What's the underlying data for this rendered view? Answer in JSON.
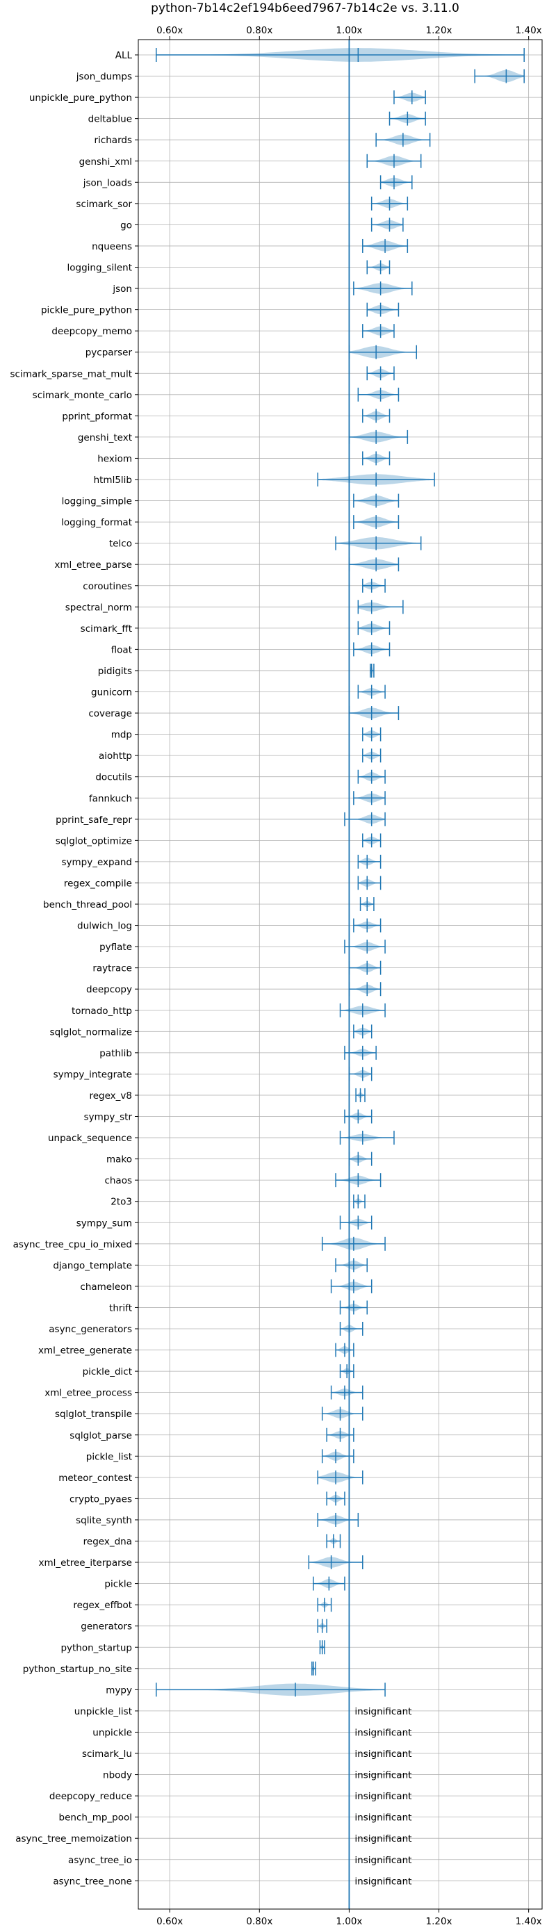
{
  "chart_data": {
    "type": "violin",
    "title": "python-7b14c2ef194b6eed7967-7b14c2e vs. 3.11.0",
    "xlim": [
      0.53,
      1.43
    ],
    "xticks": [
      0.6,
      0.8,
      1.0,
      1.2,
      1.4
    ],
    "xtick_labels": [
      "0.60x",
      "0.80x",
      "1.00x",
      "1.20x",
      "1.40x"
    ],
    "reference_line": 1.0,
    "grid": true,
    "annotation_text": "insignificant",
    "benchmarks": [
      {
        "name": "ALL",
        "min": 0.57,
        "max": 1.39,
        "mean": 1.02,
        "width": 0.9,
        "spread": 0.05
      },
      {
        "name": "json_dumps",
        "min": 1.28,
        "max": 1.39,
        "mean": 1.35,
        "width": 0.8,
        "spread": 0.02
      },
      {
        "name": "unpickle_pure_python",
        "min": 1.1,
        "max": 1.17,
        "mean": 1.14,
        "width": 0.6,
        "spread": 0.015
      },
      {
        "name": "deltablue",
        "min": 1.09,
        "max": 1.17,
        "mean": 1.13,
        "width": 0.6,
        "spread": 0.015
      },
      {
        "name": "richards",
        "min": 1.06,
        "max": 1.18,
        "mean": 1.12,
        "width": 0.7,
        "spread": 0.02
      },
      {
        "name": "genshi_xml",
        "min": 1.04,
        "max": 1.16,
        "mean": 1.1,
        "width": 0.7,
        "spread": 0.02
      },
      {
        "name": "json_loads",
        "min": 1.07,
        "max": 1.14,
        "mean": 1.1,
        "width": 0.6,
        "spread": 0.015
      },
      {
        "name": "scimark_sor",
        "min": 1.05,
        "max": 1.13,
        "mean": 1.09,
        "width": 0.6,
        "spread": 0.015
      },
      {
        "name": "go",
        "min": 1.05,
        "max": 1.12,
        "mean": 1.09,
        "width": 0.6,
        "spread": 0.015
      },
      {
        "name": "nqueens",
        "min": 1.03,
        "max": 1.13,
        "mean": 1.08,
        "width": 0.7,
        "spread": 0.02
      },
      {
        "name": "logging_silent",
        "min": 1.04,
        "max": 1.09,
        "mean": 1.07,
        "width": 0.5,
        "spread": 0.01
      },
      {
        "name": "json",
        "min": 1.01,
        "max": 1.14,
        "mean": 1.07,
        "width": 0.7,
        "spread": 0.025
      },
      {
        "name": "pickle_pure_python",
        "min": 1.04,
        "max": 1.11,
        "mean": 1.07,
        "width": 0.6,
        "spread": 0.015
      },
      {
        "name": "deepcopy_memo",
        "min": 1.03,
        "max": 1.1,
        "mean": 1.07,
        "width": 0.6,
        "spread": 0.015
      },
      {
        "name": "pycparser",
        "min": 1.0,
        "max": 1.15,
        "mean": 1.06,
        "width": 0.8,
        "spread": 0.03
      },
      {
        "name": "scimark_sparse_mat_mult",
        "min": 1.04,
        "max": 1.1,
        "mean": 1.07,
        "width": 0.6,
        "spread": 0.012
      },
      {
        "name": "scimark_monte_carlo",
        "min": 1.02,
        "max": 1.11,
        "mean": 1.07,
        "width": 0.6,
        "spread": 0.015
      },
      {
        "name": "pprint_pformat",
        "min": 1.03,
        "max": 1.09,
        "mean": 1.06,
        "width": 0.6,
        "spread": 0.012
      },
      {
        "name": "genshi_text",
        "min": 1.0,
        "max": 1.13,
        "mean": 1.06,
        "width": 0.7,
        "spread": 0.025
      },
      {
        "name": "hexiom",
        "min": 1.03,
        "max": 1.09,
        "mean": 1.06,
        "width": 0.6,
        "spread": 0.012
      },
      {
        "name": "html5lib",
        "min": 0.93,
        "max": 1.19,
        "mean": 1.06,
        "width": 0.7,
        "spread": 0.06
      },
      {
        "name": "logging_simple",
        "min": 1.01,
        "max": 1.11,
        "mean": 1.06,
        "width": 0.7,
        "spread": 0.02
      },
      {
        "name": "logging_format",
        "min": 1.01,
        "max": 1.11,
        "mean": 1.06,
        "width": 0.7,
        "spread": 0.02
      },
      {
        "name": "telco",
        "min": 0.97,
        "max": 1.16,
        "mean": 1.06,
        "width": 0.8,
        "spread": 0.04
      },
      {
        "name": "xml_etree_parse",
        "min": 1.0,
        "max": 1.11,
        "mean": 1.06,
        "width": 0.7,
        "spread": 0.025
      },
      {
        "name": "coroutines",
        "min": 1.03,
        "max": 1.08,
        "mean": 1.05,
        "width": 0.5,
        "spread": 0.012
      },
      {
        "name": "spectral_norm",
        "min": 1.02,
        "max": 1.12,
        "mean": 1.05,
        "width": 0.6,
        "spread": 0.02
      },
      {
        "name": "scimark_fft",
        "min": 1.02,
        "max": 1.09,
        "mean": 1.05,
        "width": 0.6,
        "spread": 0.015
      },
      {
        "name": "float",
        "min": 1.01,
        "max": 1.09,
        "mean": 1.05,
        "width": 0.6,
        "spread": 0.015
      },
      {
        "name": "pidigits",
        "min": 1.047,
        "max": 1.055,
        "mean": 1.05,
        "width": 0.6,
        "spread": 0.002
      },
      {
        "name": "gunicorn",
        "min": 1.02,
        "max": 1.08,
        "mean": 1.05,
        "width": 0.5,
        "spread": 0.012
      },
      {
        "name": "coverage",
        "min": 1.0,
        "max": 1.11,
        "mean": 1.05,
        "width": 0.7,
        "spread": 0.02
      },
      {
        "name": "mdp",
        "min": 1.03,
        "max": 1.07,
        "mean": 1.05,
        "width": 0.5,
        "spread": 0.01
      },
      {
        "name": "aiohttp",
        "min": 1.03,
        "max": 1.07,
        "mean": 1.05,
        "width": 0.5,
        "spread": 0.01
      },
      {
        "name": "docutils",
        "min": 1.02,
        "max": 1.08,
        "mean": 1.05,
        "width": 0.6,
        "spread": 0.012
      },
      {
        "name": "fannkuch",
        "min": 1.01,
        "max": 1.08,
        "mean": 1.05,
        "width": 0.6,
        "spread": 0.015
      },
      {
        "name": "pprint_safe_repr",
        "min": 0.99,
        "max": 1.08,
        "mean": 1.05,
        "width": 0.6,
        "spread": 0.015
      },
      {
        "name": "sqlglot_optimize",
        "min": 1.03,
        "max": 1.07,
        "mean": 1.05,
        "width": 0.5,
        "spread": 0.01
      },
      {
        "name": "sympy_expand",
        "min": 1.02,
        "max": 1.07,
        "mean": 1.04,
        "width": 0.5,
        "spread": 0.01
      },
      {
        "name": "regex_compile",
        "min": 1.02,
        "max": 1.07,
        "mean": 1.04,
        "width": 0.5,
        "spread": 0.01
      },
      {
        "name": "bench_thread_pool",
        "min": 1.025,
        "max": 1.055,
        "mean": 1.04,
        "width": 0.4,
        "spread": 0.007
      },
      {
        "name": "dulwich_log",
        "min": 1.01,
        "max": 1.07,
        "mean": 1.04,
        "width": 0.5,
        "spread": 0.012
      },
      {
        "name": "pyflate",
        "min": 0.99,
        "max": 1.08,
        "mean": 1.04,
        "width": 0.6,
        "spread": 0.015
      },
      {
        "name": "raytrace",
        "min": 1.0,
        "max": 1.07,
        "mean": 1.04,
        "width": 0.6,
        "spread": 0.012
      },
      {
        "name": "deepcopy",
        "min": 1.0,
        "max": 1.07,
        "mean": 1.04,
        "width": 0.6,
        "spread": 0.012
      },
      {
        "name": "tornado_http",
        "min": 0.98,
        "max": 1.08,
        "mean": 1.03,
        "width": 0.6,
        "spread": 0.02
      },
      {
        "name": "sqlglot_normalize",
        "min": 1.01,
        "max": 1.05,
        "mean": 1.03,
        "width": 0.5,
        "spread": 0.01
      },
      {
        "name": "pathlib",
        "min": 0.99,
        "max": 1.06,
        "mean": 1.03,
        "width": 0.5,
        "spread": 0.012
      },
      {
        "name": "sympy_integrate",
        "min": 1.0,
        "max": 1.05,
        "mean": 1.03,
        "width": 0.5,
        "spread": 0.01
      },
      {
        "name": "regex_v8",
        "min": 1.015,
        "max": 1.035,
        "mean": 1.025,
        "width": 0.4,
        "spread": 0.004
      },
      {
        "name": "sympy_str",
        "min": 0.99,
        "max": 1.05,
        "mean": 1.02,
        "width": 0.5,
        "spread": 0.01
      },
      {
        "name": "unpack_sequence",
        "min": 0.98,
        "max": 1.1,
        "mean": 1.03,
        "width": 0.5,
        "spread": 0.015
      },
      {
        "name": "mako",
        "min": 1.0,
        "max": 1.05,
        "mean": 1.02,
        "width": 0.5,
        "spread": 0.01
      },
      {
        "name": "chaos",
        "min": 0.97,
        "max": 1.07,
        "mean": 1.02,
        "width": 0.6,
        "spread": 0.015
      },
      {
        "name": "2to3",
        "min": 1.01,
        "max": 1.035,
        "mean": 1.02,
        "width": 0.4,
        "spread": 0.005
      },
      {
        "name": "sympy_sum",
        "min": 0.98,
        "max": 1.05,
        "mean": 1.02,
        "width": 0.5,
        "spread": 0.012
      },
      {
        "name": "async_tree_cpu_io_mixed",
        "min": 0.94,
        "max": 1.08,
        "mean": 1.01,
        "width": 0.8,
        "spread": 0.02
      },
      {
        "name": "django_template",
        "min": 0.97,
        "max": 1.04,
        "mean": 1.01,
        "width": 0.6,
        "spread": 0.012
      },
      {
        "name": "chameleon",
        "min": 0.96,
        "max": 1.05,
        "mean": 1.01,
        "width": 0.6,
        "spread": 0.012
      },
      {
        "name": "thrift",
        "min": 0.98,
        "max": 1.04,
        "mean": 1.01,
        "width": 0.5,
        "spread": 0.01
      },
      {
        "name": "async_generators",
        "min": 0.98,
        "max": 1.03,
        "mean": 1.0,
        "width": 0.5,
        "spread": 0.008
      },
      {
        "name": "xml_etree_generate",
        "min": 0.97,
        "max": 1.01,
        "mean": 0.99,
        "width": 0.5,
        "spread": 0.008
      },
      {
        "name": "pickle_dict",
        "min": 0.98,
        "max": 1.01,
        "mean": 0.995,
        "width": 0.4,
        "spread": 0.006
      },
      {
        "name": "xml_etree_process",
        "min": 0.96,
        "max": 1.03,
        "mean": 0.99,
        "width": 0.5,
        "spread": 0.012
      },
      {
        "name": "sqlglot_transpile",
        "min": 0.94,
        "max": 1.03,
        "mean": 0.98,
        "width": 0.6,
        "spread": 0.015
      },
      {
        "name": "sqlglot_parse",
        "min": 0.95,
        "max": 1.01,
        "mean": 0.98,
        "width": 0.5,
        "spread": 0.012
      },
      {
        "name": "pickle_list",
        "min": 0.94,
        "max": 1.01,
        "mean": 0.97,
        "width": 0.6,
        "spread": 0.012
      },
      {
        "name": "meteor_contest",
        "min": 0.93,
        "max": 1.03,
        "mean": 0.97,
        "width": 0.7,
        "spread": 0.02
      },
      {
        "name": "crypto_pyaes",
        "min": 0.95,
        "max": 0.99,
        "mean": 0.97,
        "width": 0.5,
        "spread": 0.008
      },
      {
        "name": "sqlite_synth",
        "min": 0.93,
        "max": 1.02,
        "mean": 0.97,
        "width": 0.6,
        "spread": 0.014
      },
      {
        "name": "regex_dna",
        "min": 0.95,
        "max": 0.98,
        "mean": 0.965,
        "width": 0.4,
        "spread": 0.005
      },
      {
        "name": "xml_etree_iterparse",
        "min": 0.91,
        "max": 1.03,
        "mean": 0.96,
        "width": 0.7,
        "spread": 0.02
      },
      {
        "name": "pickle",
        "min": 0.92,
        "max": 0.99,
        "mean": 0.955,
        "width": 0.6,
        "spread": 0.012
      },
      {
        "name": "regex_effbot",
        "min": 0.93,
        "max": 0.96,
        "mean": 0.945,
        "width": 0.4,
        "spread": 0.005
      },
      {
        "name": "generators",
        "min": 0.93,
        "max": 0.95,
        "mean": 0.94,
        "width": 0.4,
        "spread": 0.004
      },
      {
        "name": "python_startup",
        "min": 0.935,
        "max": 0.945,
        "mean": 0.94,
        "width": 0.4,
        "spread": 0.002
      },
      {
        "name": "python_startup_no_site",
        "min": 0.917,
        "max": 0.925,
        "mean": 0.92,
        "width": 0.4,
        "spread": 0.002
      },
      {
        "name": "mypy",
        "min": 0.57,
        "max": 1.08,
        "mean": 0.88,
        "width": 0.8,
        "spread": 0.07
      },
      {
        "name": "unpickle_list",
        "insignificant": true
      },
      {
        "name": "unpickle",
        "insignificant": true
      },
      {
        "name": "scimark_lu",
        "insignificant": true
      },
      {
        "name": "nbody",
        "insignificant": true
      },
      {
        "name": "deepcopy_reduce",
        "insignificant": true
      },
      {
        "name": "bench_mp_pool",
        "insignificant": true
      },
      {
        "name": "async_tree_memoization",
        "insignificant": true
      },
      {
        "name": "async_tree_io",
        "insignificant": true
      },
      {
        "name": "async_tree_none",
        "insignificant": true
      }
    ]
  }
}
